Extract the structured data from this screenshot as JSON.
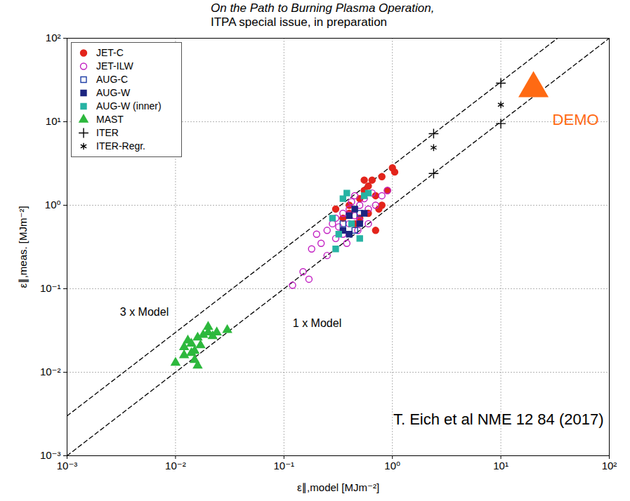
{
  "chart_data": {
    "type": "scatter",
    "title": "On the Path to Burning Plasma Operation,",
    "subtitle": "ITPA special issue, in preparation",
    "x_label": "ε∥,model [MJm⁻²]",
    "y_label": "ε∥,meas. [MJm⁻²]",
    "log": true,
    "grid": true,
    "legend": "upper left",
    "xlim": [
      0.001,
      100
    ],
    "ylim": [
      0.001,
      100
    ],
    "xticks": [
      {
        "value": 0.001,
        "label": "10⁻³"
      },
      {
        "value": 0.01,
        "label": "10⁻²"
      },
      {
        "value": 0.1,
        "label": "10⁻¹"
      },
      {
        "value": 1,
        "label": "10⁰"
      },
      {
        "value": 10,
        "label": "10¹"
      },
      {
        "value": 100,
        "label": "10²"
      }
    ],
    "yticks": [
      {
        "value": 0.001,
        "label": "10⁻³"
      },
      {
        "value": 0.01,
        "label": "10⁻²"
      },
      {
        "value": 0.1,
        "label": "10⁻¹"
      },
      {
        "value": 1,
        "label": "10⁰"
      },
      {
        "value": 10,
        "label": "10¹"
      },
      {
        "value": 100,
        "label": "10²"
      }
    ],
    "series": [
      {
        "name": "JET-C",
        "color": "#e3241b",
        "marker": "circle",
        "x": [
          0.3,
          0.35,
          0.4,
          0.45,
          0.5,
          0.55,
          0.6,
          0.6,
          0.65,
          0.7,
          0.75,
          0.8,
          0.9,
          1.0,
          1.05,
          0.7,
          0.5,
          0.55,
          0.8,
          0.4
        ],
        "y": [
          0.9,
          0.7,
          1.0,
          0.6,
          1.2,
          1.5,
          1.7,
          0.8,
          2.0,
          1.3,
          0.9,
          2.2,
          1.5,
          2.8,
          2.5,
          0.5,
          0.7,
          2.0,
          1.0,
          0.8
        ]
      },
      {
        "name": "JET-ILW",
        "color": "#c21fc2",
        "marker": "circle-open",
        "x": [
          0.12,
          0.15,
          0.17,
          0.18,
          0.2,
          0.22,
          0.25,
          0.25,
          0.28,
          0.3,
          0.3,
          0.32,
          0.35,
          0.35,
          0.4,
          0.4,
          0.42,
          0.45,
          0.48,
          0.5,
          0.5,
          0.55,
          0.6,
          0.6,
          0.65,
          0.7,
          0.8,
          0.9,
          0.38,
          0.45
        ],
        "y": [
          0.11,
          0.16,
          0.13,
          0.3,
          0.45,
          0.35,
          0.5,
          0.25,
          0.6,
          0.4,
          0.7,
          0.55,
          0.8,
          0.45,
          0.6,
          0.9,
          1.1,
          0.75,
          0.5,
          1.0,
          0.65,
          1.2,
          0.9,
          0.6,
          1.4,
          1.0,
          1.3,
          1.5,
          0.35,
          1.3
        ]
      },
      {
        "name": "AUG-C",
        "color": "#1f3fa6",
        "marker": "square-open",
        "x": [
          0.35,
          0.45,
          0.5
        ],
        "y": [
          0.6,
          0.5,
          0.8
        ]
      },
      {
        "name": "AUG-W",
        "color": "#1c2580",
        "marker": "square",
        "x": [
          0.35,
          0.4,
          0.45,
          0.5,
          0.55,
          0.4
        ],
        "y": [
          0.5,
          0.75,
          0.9,
          0.6,
          0.8,
          0.45
        ]
      },
      {
        "name": "AUG-W (inner)",
        "color": "#27b3a3",
        "marker": "square",
        "x": [
          0.3,
          0.32,
          0.35,
          0.38,
          0.42,
          0.5,
          0.55,
          0.6,
          0.28
        ],
        "y": [
          0.3,
          0.45,
          1.2,
          1.4,
          0.6,
          0.4,
          1.3,
          1.4,
          0.7
        ]
      },
      {
        "name": "MAST",
        "color": "#2db83d",
        "marker": "triangle",
        "x": [
          0.01,
          0.012,
          0.013,
          0.014,
          0.015,
          0.015,
          0.016,
          0.016,
          0.017,
          0.018,
          0.02,
          0.02,
          0.022,
          0.024,
          0.03,
          0.014,
          0.012
        ],
        "y": [
          0.013,
          0.02,
          0.024,
          0.017,
          0.018,
          0.014,
          0.012,
          0.026,
          0.021,
          0.028,
          0.03,
          0.035,
          0.027,
          0.03,
          0.032,
          0.022,
          0.016
        ]
      },
      {
        "name": "ITER",
        "color": "#000000",
        "marker": "plus",
        "x": [
          2.4,
          2.4,
          10,
          10
        ],
        "y": [
          7.2,
          2.4,
          29,
          9.5
        ]
      },
      {
        "name": "ITER-Regr.",
        "color": "#000000",
        "marker": "asterisk",
        "x": [
          2.4,
          10
        ],
        "y": [
          4.9,
          16
        ]
      }
    ],
    "reference_lines": [
      {
        "name": "3 x Model",
        "color": "#000000",
        "line_style": "dashed",
        "x": [
          0.001,
          100
        ],
        "y": [
          0.003,
          300
        ]
      },
      {
        "name": "1 x Model",
        "color": "#000000",
        "line_style": "dashed",
        "x": [
          0.001,
          100
        ],
        "y": [
          0.001,
          100
        ]
      }
    ],
    "highlight": {
      "name": "DEMO",
      "color": "#ff6a13",
      "marker": "triangle",
      "x": 20,
      "y": 25
    },
    "caption": "T. Eich et al NME 12 84 (2017)"
  }
}
